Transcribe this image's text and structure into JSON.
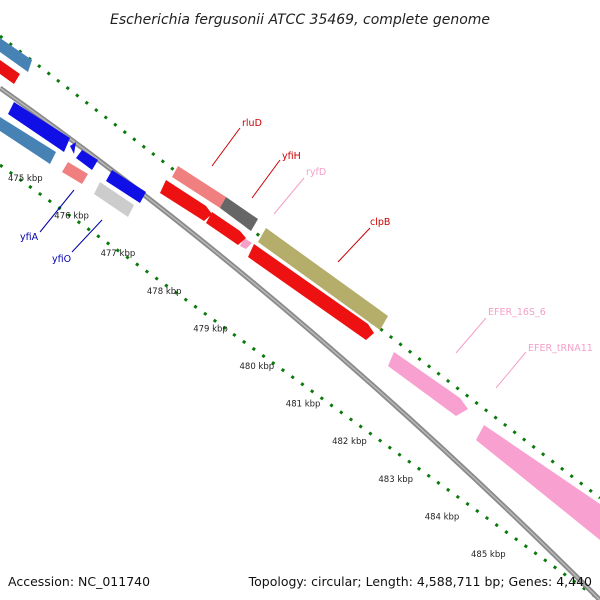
{
  "title": "Escherichia fergusonii ATCC 35469, complete genome",
  "footer": {
    "accession": "Accession: NC_011740",
    "summary": "Topology: circular; Length: 4,588,711 bp; Genes: 4,440"
  },
  "ticks": [
    {
      "label": "475 kbp"
    },
    {
      "label": "476 kbp"
    },
    {
      "label": "477 kbp"
    },
    {
      "label": "478 kbp"
    },
    {
      "label": "479 kbp"
    },
    {
      "label": "480 kbp"
    },
    {
      "label": "481 kbp"
    },
    {
      "label": "482 kbp"
    },
    {
      "label": "483 kbp"
    },
    {
      "label": "484 kbp"
    },
    {
      "label": "485 kbp"
    }
  ],
  "gene_labels": [
    {
      "name": "rluD",
      "color": "#cc0000"
    },
    {
      "name": "yfiH",
      "color": "#cc0000"
    },
    {
      "name": "ryfD",
      "color": "#f4a0c8"
    },
    {
      "name": "clpB",
      "color": "#cc0000"
    },
    {
      "name": "EFER_16S_6",
      "color": "#f4a0c8"
    },
    {
      "name": "EFER_tRNA11",
      "color": "#f4a0c8"
    },
    {
      "name": "yfiA",
      "color": "#0000aa"
    },
    {
      "name": "yfiO",
      "color": "#0000aa"
    }
  ],
  "colors": {
    "backbone": "#808080",
    "tick_dots": "#007a00",
    "cds_forward": "#ee1111",
    "cds_reverse": "#1111ee",
    "rRNA": "#f8a0d0",
    "clpB": "#b5ad6a",
    "rluD": "#f08080",
    "yfiH": "#666666",
    "yfiO": "#cccccc",
    "steel": "#4682b4"
  }
}
